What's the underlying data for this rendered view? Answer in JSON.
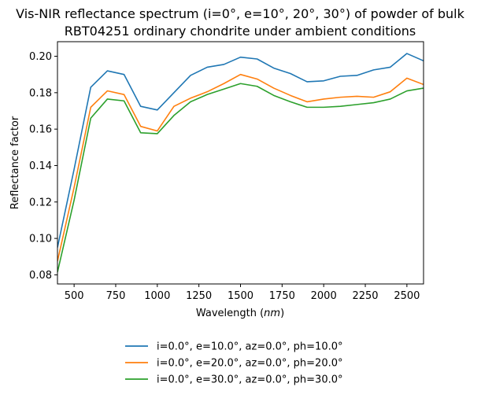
{
  "chart_data": {
    "type": "line",
    "title_lines": [
      "Vis-NIR reflectance spectrum (i=0°, e=10°, 20°, 30°) of powder of bulk",
      "RBT04251 ordinary chondrite under ambient conditions"
    ],
    "xlabel": "Wavelength (",
    "xlabel_unit": "nm",
    "xlabel_close": ")",
    "ylabel": "Reflectance factor",
    "xlim": [
      400,
      2600
    ],
    "ylim": [
      0.075,
      0.208
    ],
    "x_ticks": [
      500,
      750,
      1000,
      1250,
      1500,
      1750,
      2000,
      2250,
      2500
    ],
    "y_ticks": [
      0.08,
      0.1,
      0.12,
      0.14,
      0.16,
      0.18,
      0.2
    ],
    "x_tick_labels": [
      "500",
      "750",
      "1000",
      "1250",
      "1500",
      "1750",
      "2000",
      "2250",
      "2500"
    ],
    "y_tick_labels": [
      "0.08",
      "0.10",
      "0.12",
      "0.14",
      "0.16",
      "0.18",
      "0.20"
    ],
    "grid": false,
    "legend_position": "below",
    "x": [
      400,
      500,
      600,
      700,
      800,
      900,
      1000,
      1100,
      1200,
      1300,
      1400,
      1500,
      1600,
      1700,
      1800,
      1900,
      2000,
      2100,
      2200,
      2300,
      2400,
      2500,
      2600
    ],
    "series": [
      {
        "name": "i=0.0°, e=10.0°, az=0.0°, ph=10.0°",
        "color": "#1f77b4",
        "values": [
          0.095,
          0.138,
          0.183,
          0.192,
          0.19,
          0.1725,
          0.1705,
          0.18,
          0.1895,
          0.194,
          0.1955,
          0.1995,
          0.1985,
          0.1935,
          0.1905,
          0.186,
          0.1865,
          0.189,
          0.1895,
          0.1925,
          0.194,
          0.2015,
          0.1975
        ]
      },
      {
        "name": "i=0.0°, e=20.0°, az=0.0°, ph=20.0°",
        "color": "#ff7f0e",
        "values": [
          0.0875,
          0.128,
          0.172,
          0.181,
          0.179,
          0.1615,
          0.159,
          0.1725,
          0.177,
          0.1805,
          0.185,
          0.19,
          0.1875,
          0.1825,
          0.1785,
          0.175,
          0.1765,
          0.1775,
          0.178,
          0.1775,
          0.1805,
          0.188,
          0.1845
        ]
      },
      {
        "name": "i=0.0°, e=30.0°, az=0.0°, ph=30.0°",
        "color": "#2ca02c",
        "values": [
          0.0815,
          0.121,
          0.166,
          0.1765,
          0.1755,
          0.158,
          0.1575,
          0.1675,
          0.175,
          0.179,
          0.182,
          0.185,
          0.1835,
          0.1785,
          0.175,
          0.172,
          0.172,
          0.1725,
          0.1735,
          0.1745,
          0.1765,
          0.181,
          0.1825
        ]
      }
    ]
  }
}
